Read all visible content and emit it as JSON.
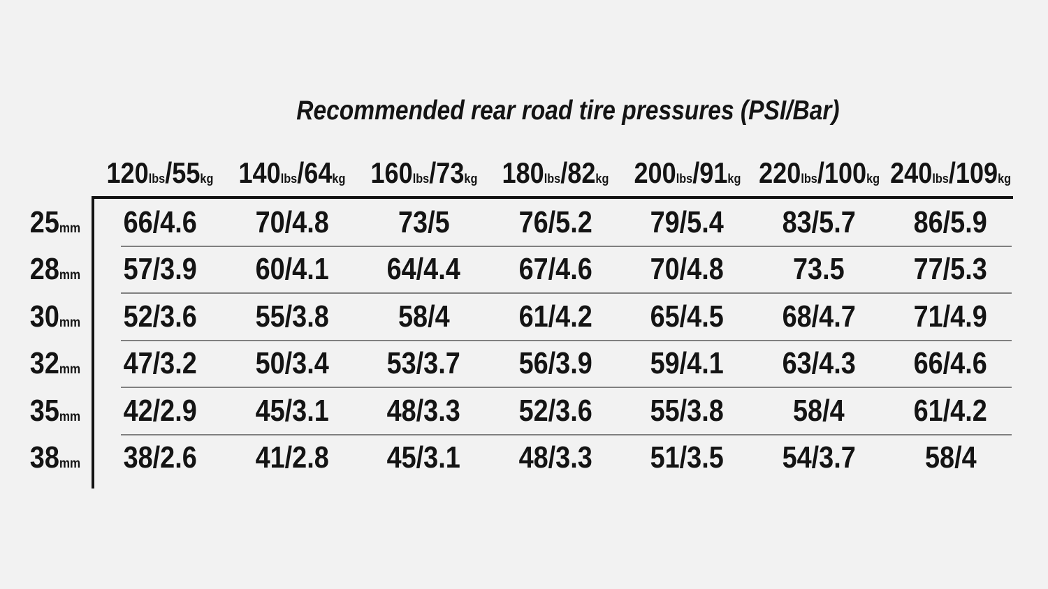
{
  "colors": {
    "bg": "#f2f2f2",
    "text": "#141414",
    "rule_strong": "#131313",
    "rule_light": "#808080"
  },
  "units": {
    "weight": "lbs",
    "mass": "kg",
    "size": "mm"
  },
  "chart_data": {
    "type": "table",
    "title": "Recommended rear road tire pressures (PSI/Bar)",
    "columns": [
      {
        "lbs": "120",
        "kg": "55",
        "label": "120lbs/55kg"
      },
      {
        "lbs": "140",
        "kg": "64",
        "label": "140lbs/64kg"
      },
      {
        "lbs": "160",
        "kg": "73",
        "label": "160lbs/73kg"
      },
      {
        "lbs": "180",
        "kg": "82",
        "label": "180lbs/82kg"
      },
      {
        "lbs": "200",
        "kg": "91",
        "label": "200lbs/91kg"
      },
      {
        "lbs": "220",
        "kg": "100",
        "label": "220lbs/100kg"
      },
      {
        "lbs": "240",
        "kg": "109",
        "label": "240lbs/109kg"
      }
    ],
    "rows": [
      {
        "size": "25",
        "label": "25mm",
        "values": [
          "66/4.6",
          "70/4.8",
          "73/5",
          "76/5.2",
          "79/5.4",
          "83/5.7",
          "86/5.9"
        ]
      },
      {
        "size": "28",
        "label": "28mm",
        "values": [
          "57/3.9",
          "60/4.1",
          "64/4.4",
          "67/4.6",
          "70/4.8",
          "73.5",
          "77/5.3"
        ]
      },
      {
        "size": "30",
        "label": "30mm",
        "values": [
          "52/3.6",
          "55/3.8",
          "58/4",
          "61/4.2",
          "65/4.5",
          "68/4.7",
          "71/4.9"
        ]
      },
      {
        "size": "32",
        "label": "32mm",
        "values": [
          "47/3.2",
          "50/3.4",
          "53/3.7",
          "56/3.9",
          "59/4.1",
          "63/4.3",
          "66/4.6"
        ]
      },
      {
        "size": "35",
        "label": "35mm",
        "values": [
          "42/2.9",
          "45/3.1",
          "48/3.3",
          "52/3.6",
          "55/3.8",
          "58/4",
          "61/4.2"
        ]
      },
      {
        "size": "38",
        "label": "38mm",
        "values": [
          "38/2.6",
          "41/2.8",
          "45/3.1",
          "48/3.3",
          "51/3.5",
          "54/3.7",
          "58/4"
        ]
      }
    ]
  }
}
